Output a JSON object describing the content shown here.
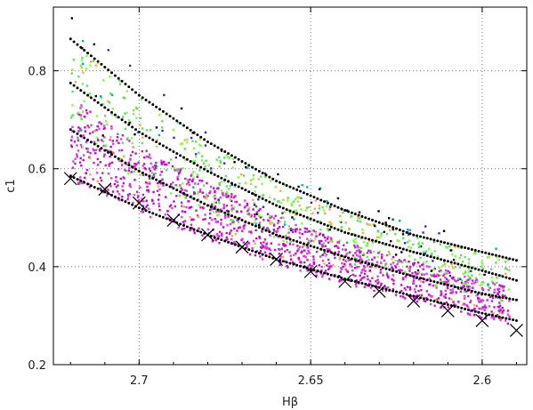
{
  "chart_data": {
    "type": "scatter",
    "xlabel": "Hβ",
    "ylabel": "c1",
    "xlim": [
      2.725,
      2.587
    ],
    "ylim": [
      0.2,
      0.93
    ],
    "x_reversed": true,
    "x_ticks": [
      2.7,
      2.65,
      2.6
    ],
    "x_tick_labels": [
      "2.7",
      "2.65",
      "2.6"
    ],
    "y_ticks": [
      0.2,
      0.4,
      0.6,
      0.8
    ],
    "y_tick_labels": [
      "0.2",
      "0.4",
      "0.6",
      "0.8"
    ],
    "grid": true,
    "legend": "none",
    "curves": [
      {
        "x": [
          2.72,
          2.7,
          2.68,
          2.66,
          2.64,
          2.62,
          2.6,
          2.59
        ],
        "y": [
          0.865,
          0.75,
          0.655,
          0.575,
          0.515,
          0.465,
          0.43,
          0.413
        ]
      },
      {
        "x": [
          2.72,
          2.7,
          2.68,
          2.66,
          2.64,
          2.62,
          2.6,
          2.59
        ],
        "y": [
          0.775,
          0.675,
          0.595,
          0.525,
          0.47,
          0.43,
          0.392,
          0.372
        ]
      },
      {
        "x": [
          2.72,
          2.7,
          2.68,
          2.66,
          2.64,
          2.62,
          2.6,
          2.59
        ],
        "y": [
          0.68,
          0.595,
          0.525,
          0.465,
          0.42,
          0.38,
          0.345,
          0.332
        ]
      },
      {
        "x": [
          2.72,
          2.7,
          2.68,
          2.66,
          2.64,
          2.62,
          2.6,
          2.59
        ],
        "y": [
          0.585,
          0.52,
          0.465,
          0.415,
          0.375,
          0.34,
          0.305,
          0.29
        ]
      }
    ],
    "cross_markers": {
      "x": [
        2.72,
        2.71,
        2.7,
        2.69,
        2.68,
        2.67,
        2.66,
        2.65,
        2.64,
        2.63,
        2.62,
        2.61,
        2.6,
        2.59
      ],
      "y": [
        0.58,
        0.558,
        0.53,
        0.495,
        0.465,
        0.44,
        0.415,
        0.39,
        0.37,
        0.35,
        0.33,
        0.31,
        0.29,
        0.27
      ]
    },
    "scatter_colors": [
      "#d000d0",
      "#e040e0",
      "#c020c0",
      "#80ff40",
      "#60e060",
      "#ffaa40",
      "#3030b0",
      "#00b0b0",
      "#000000"
    ]
  }
}
